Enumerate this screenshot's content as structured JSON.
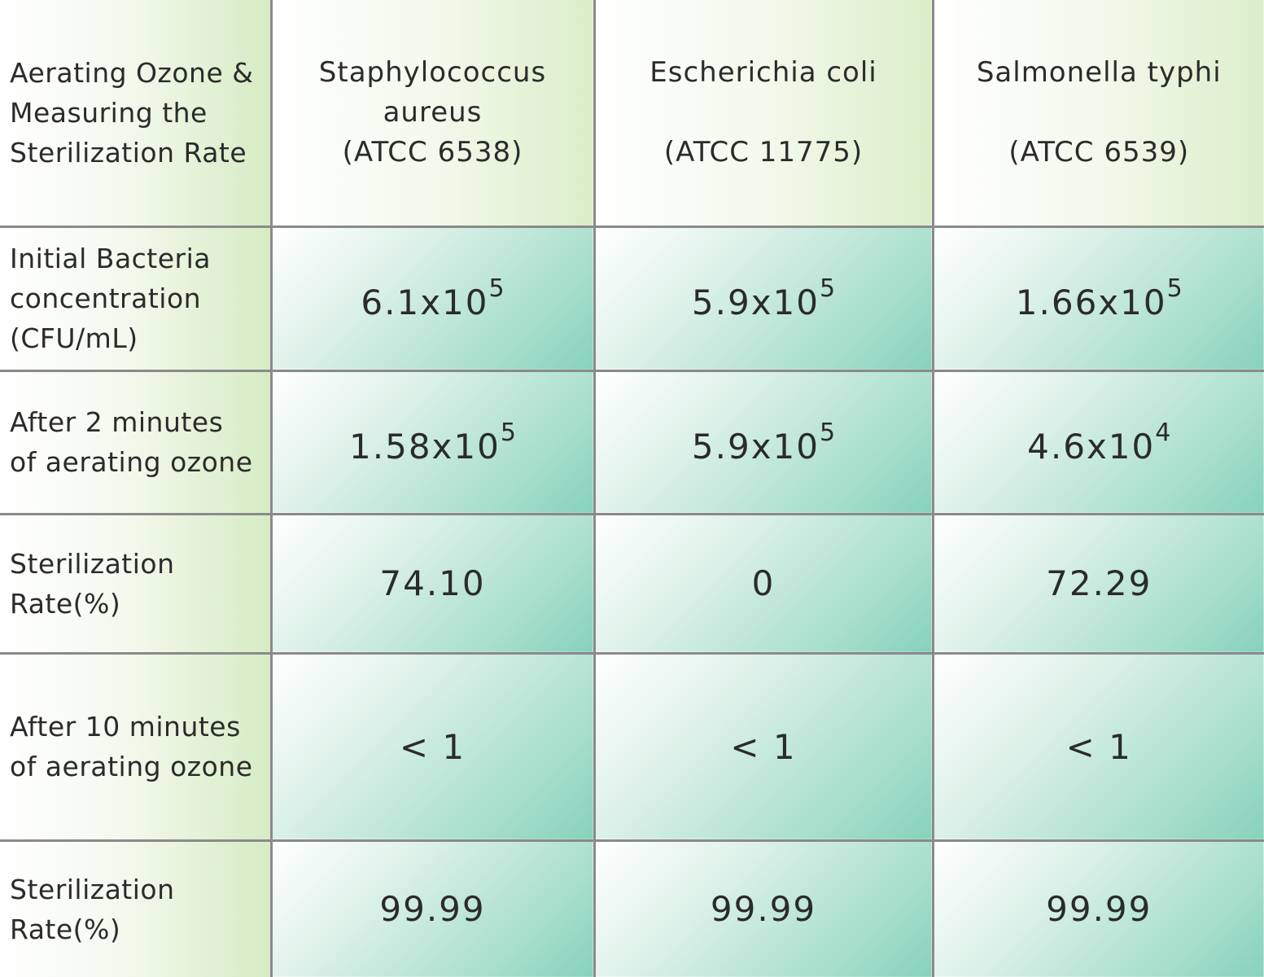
{
  "chart_data": {
    "type": "table",
    "corner_header": [
      "Aerating Ozone &",
      "Measuring the",
      "Sterilization Rate"
    ],
    "columns": [
      {
        "name": [
          "Staphylococcus",
          "aureus"
        ],
        "strain": "(ATCC 6538)"
      },
      {
        "name": [
          "Escherichia coli"
        ],
        "strain": "(ATCC 11775)"
      },
      {
        "name": [
          "Salmonella typhi"
        ],
        "strain": "(ATCC 6539)"
      }
    ],
    "rows": [
      {
        "label": [
          "Initial Bacteria",
          "concentration",
          "(CFU/mL)"
        ],
        "cells": [
          {
            "base": "6.1x10",
            "exp": "5"
          },
          {
            "base": "5.9x10",
            "exp": "5"
          },
          {
            "base": "1.66x10",
            "exp": "5"
          }
        ]
      },
      {
        "label": [
          "After 2 minutes",
          "of aerating ozone"
        ],
        "cells": [
          {
            "base": "1.58x10",
            "exp": "5"
          },
          {
            "base": "5.9x10",
            "exp": "5"
          },
          {
            "base": "4.6x10",
            "exp": "4"
          }
        ]
      },
      {
        "label": [
          "Sterilization",
          "Rate(%)"
        ],
        "cells": [
          {
            "base": "74.10"
          },
          {
            "base": "0"
          },
          {
            "base": "72.29"
          }
        ]
      },
      {
        "label": [
          "After 10 minutes",
          "of aerating ozone"
        ],
        "cells": [
          {
            "base": "< 1"
          },
          {
            "base": "< 1"
          },
          {
            "base": "< 1"
          }
        ]
      },
      {
        "label": [
          "Sterilization",
          "Rate(%)"
        ],
        "cells": [
          {
            "base": "99.99"
          },
          {
            "base": "99.99"
          },
          {
            "base": "99.99"
          }
        ]
      }
    ]
  },
  "colors": {
    "grid_line": "#8a8a8a",
    "header_gradient_end": "#d6ecc4",
    "cell_gradient_end": "#86d2bb",
    "text": "#2b2b2b"
  }
}
